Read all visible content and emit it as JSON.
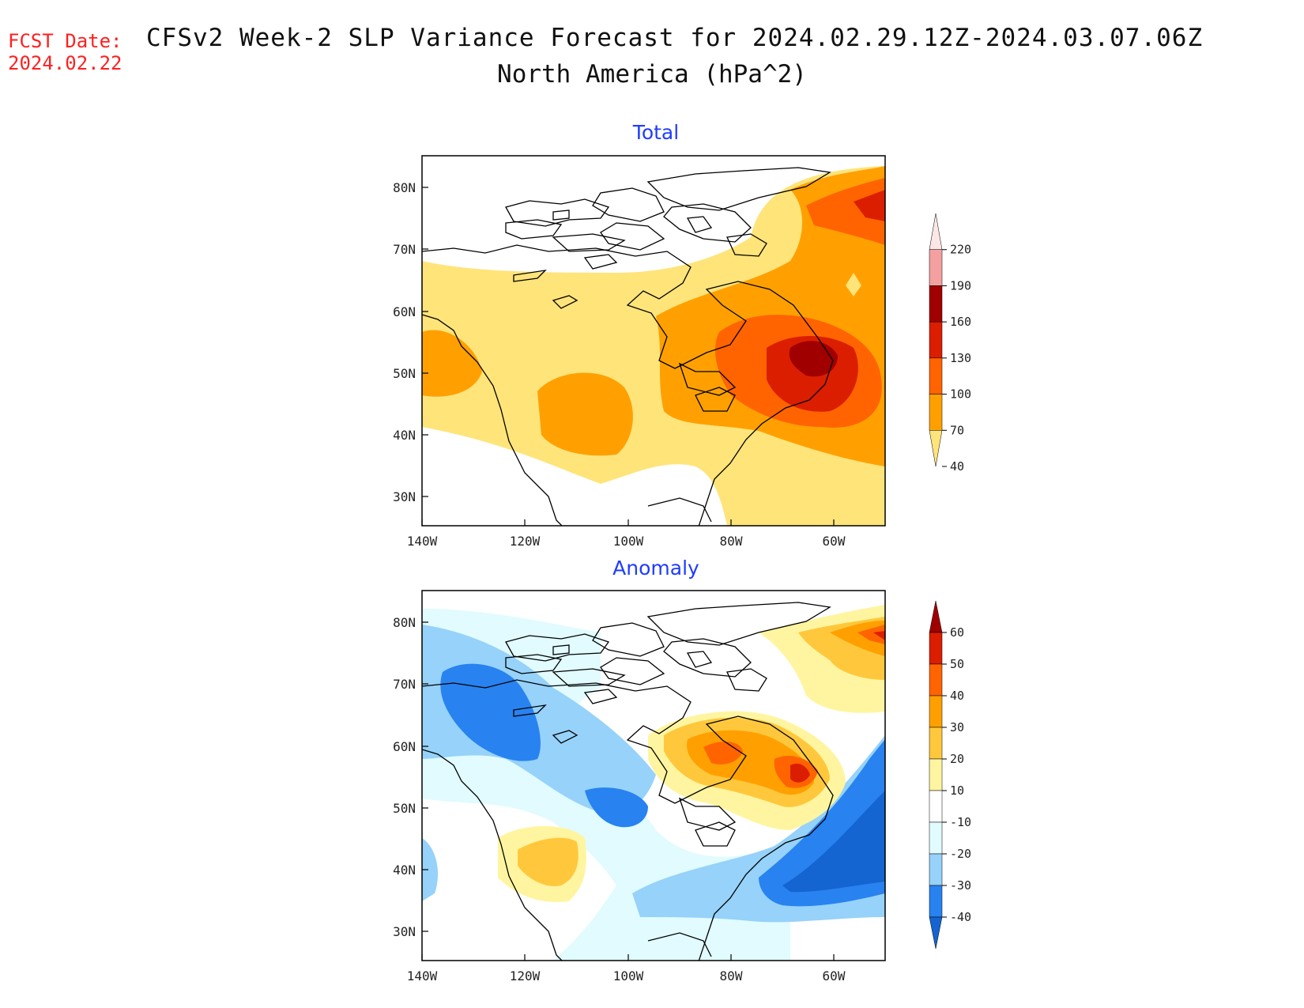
{
  "header": {
    "fcst_label": "FCST Date:",
    "fcst_date": "2024.02.22",
    "title_line1": "CFSv2 Week-2 SLP Variance Forecast for 2024.02.29.12Z-2024.03.07.06Z",
    "title_line2": "North America (hPa^2)"
  },
  "panels": [
    {
      "title": "Total",
      "lat_ticks": [
        "80N",
        "70N",
        "60N",
        "50N",
        "40N",
        "30N"
      ],
      "lon_ticks": [
        "140W",
        "120W",
        "100W",
        "80W",
        "60W"
      ],
      "colorbar_labels": [
        "220",
        "190",
        "160",
        "130",
        "100",
        "70",
        "40"
      ],
      "colorbar_colors": [
        "#fce6e6",
        "#f4a0a0",
        "#a00000",
        "#dc1e00",
        "#ff6400",
        "#ffa000",
        "#ffe47a"
      ]
    },
    {
      "title": "Anomaly",
      "lat_ticks": [
        "80N",
        "70N",
        "60N",
        "50N",
        "40N",
        "30N"
      ],
      "lon_ticks": [
        "140W",
        "120W",
        "100W",
        "80W",
        "60W"
      ],
      "colorbar_labels": [
        "60",
        "50",
        "40",
        "30",
        "20",
        "10",
        "-10",
        "-20",
        "-30",
        "-40"
      ],
      "colorbar_colors": [
        "#a00000",
        "#dc1e00",
        "#ff6400",
        "#ffa000",
        "#ffc83c",
        "#fff5a0",
        "#ffffff",
        "#e1fbff",
        "#96d2fa",
        "#2882f0",
        "#1464d2"
      ]
    }
  ],
  "colors": {
    "panel_title": "#1e3cff",
    "fcst_date": "#ff2020"
  }
}
